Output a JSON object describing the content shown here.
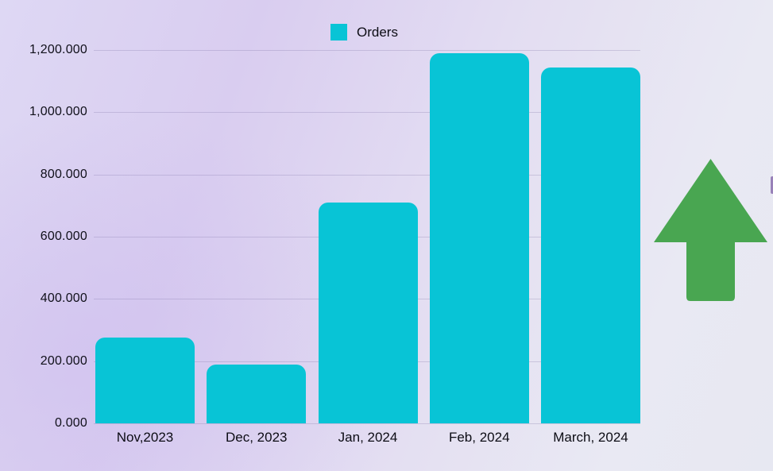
{
  "legend": {
    "label": "Orders",
    "swatch_color": "#08c4d6"
  },
  "chart_data": {
    "type": "bar",
    "title": "",
    "categories": [
      "Nov,2023",
      "Dec, 2023",
      "Jan, 2024",
      "Feb, 2024",
      "March, 2024"
    ],
    "series": [
      {
        "name": "Orders",
        "values": [
          275000,
          190000,
          710000,
          1190000,
          1145000
        ]
      }
    ],
    "bar_color": "#08c4d6",
    "y_ticks": [
      {
        "label": "1,200.000",
        "value": 1200000
      },
      {
        "label": "1,000.000",
        "value": 1000000
      },
      {
        "label": "800.000",
        "value": 800000
      },
      {
        "label": "600.000",
        "value": 600000
      },
      {
        "label": "400.000",
        "value": 400000
      },
      {
        "label": "200.000",
        "value": 200000
      },
      {
        "label": "0.000",
        "value": 0
      }
    ],
    "ylim": [
      0,
      1200000
    ],
    "xlabel": "",
    "ylabel": "",
    "grid": "horizontal",
    "legend_position": "top"
  },
  "indicator": {
    "name": "growth-up-arrow",
    "color": "#49a651"
  },
  "edge_artifact": {
    "color": "#8a6fae"
  }
}
